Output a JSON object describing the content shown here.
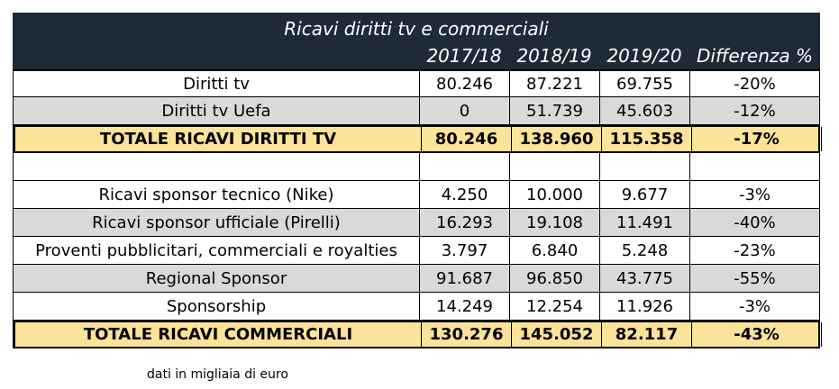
{
  "table": {
    "title": "Ricavi diritti tv e commerciali",
    "headers": [
      "2017/18",
      "2018/19",
      "2019/20",
      "Differenza %"
    ],
    "rows": [
      {
        "label": "Diritti tv",
        "values": [
          "80.246",
          "87.221",
          "69.755",
          "-20%"
        ],
        "style": "white"
      },
      {
        "label": "Diritti tv Uefa",
        "values": [
          "0",
          "51.739",
          "45.603",
          "-12%"
        ],
        "style": "gray"
      },
      {
        "label": "TOTALE RICAVI DIRITTI TV",
        "values": [
          "80.246",
          "138.960",
          "115.358",
          "-17%"
        ],
        "style": "total"
      },
      {
        "label": "",
        "values": [
          "",
          "",
          "",
          ""
        ],
        "style": "blank"
      },
      {
        "label": "Ricavi sponsor tecnico (Nike)",
        "values": [
          "4.250",
          "10.000",
          "9.677",
          "-3%"
        ],
        "style": "white"
      },
      {
        "label": "Ricavi sponsor ufficiale (Pirelli)",
        "values": [
          "16.293",
          "19.108",
          "11.491",
          "-40%"
        ],
        "style": "gray"
      },
      {
        "label": "Proventi pubblicitari, commerciali e royalties",
        "values": [
          "3.797",
          "6.840",
          "5.248",
          "-23%"
        ],
        "style": "white"
      },
      {
        "label": "Regional Sponsor",
        "values": [
          "91.687",
          "96.850",
          "43.775",
          "-55%"
        ],
        "style": "gray"
      },
      {
        "label": "Sponsorship",
        "values": [
          "14.249",
          "12.254",
          "11.926",
          "-3%"
        ],
        "style": "white"
      },
      {
        "label": "TOTALE RICAVI COMMERCIALI",
        "values": [
          "130.276",
          "145.052",
          "82.117",
          "-43%"
        ],
        "style": "total"
      }
    ]
  },
  "footnote": "dati in migliaia di euro",
  "colors": {
    "header_bg": "#1f2a38",
    "gray_row": "#d9d9d9",
    "total_row": "#fbe39a"
  }
}
